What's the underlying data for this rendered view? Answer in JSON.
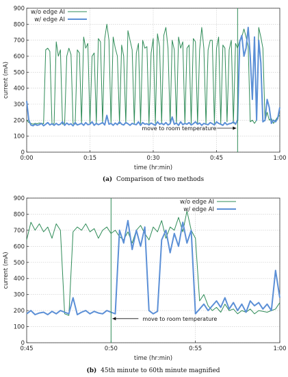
{
  "colors": {
    "without": "#2e8b57",
    "with": "#5b8fd6",
    "grid": "#c8c8c8",
    "axis": "#333333"
  },
  "chart_data": [
    {
      "id": "a",
      "type": "line",
      "caption_label": "(a)",
      "caption": "Comparison of two methods",
      "xlabel": "time (hr:min)",
      "ylabel": "current (mA)",
      "xlim": [
        0,
        60
      ],
      "ylim": [
        0,
        900
      ],
      "yticks": [
        0,
        100,
        200,
        300,
        400,
        500,
        600,
        700,
        800,
        900
      ],
      "xticks": [
        0,
        15,
        30,
        45,
        60
      ],
      "xtick_labels": [
        "0:00",
        "0:15",
        "0:30",
        "0:45",
        "1:00"
      ],
      "grid": true,
      "legend": "top-left",
      "annotation": {
        "text": "move to room temperature",
        "x": 50,
        "y": 150,
        "arrow": "right"
      },
      "vline": 50,
      "series": [
        {
          "name": "w/o edge AI",
          "x": [
            0,
            0.5,
            1,
            1.5,
            2,
            2.5,
            3,
            3.5,
            4,
            4.5,
            5,
            5.5,
            6,
            6.5,
            7,
            7.5,
            8,
            8.5,
            9,
            9.5,
            10,
            10.5,
            11,
            11.5,
            12,
            12.5,
            13,
            13.5,
            14,
            14.5,
            15,
            15.5,
            16,
            16.5,
            17,
            17.5,
            18,
            18.5,
            19,
            19.5,
            20,
            20.5,
            21,
            21.5,
            22,
            22.5,
            23,
            23.5,
            24,
            24.5,
            25,
            25.5,
            26,
            26.5,
            27,
            27.5,
            28,
            28.5,
            29,
            29.5,
            30,
            30.5,
            31,
            31.5,
            32,
            32.5,
            33,
            33.5,
            34,
            34.5,
            35,
            35.5,
            36,
            36.5,
            37,
            37.5,
            38,
            38.5,
            39,
            39.5,
            40,
            40.5,
            41,
            41.5,
            42,
            42.5,
            43,
            43.5,
            44,
            44.5,
            45,
            45.5,
            46,
            46.5,
            47,
            47.5,
            48,
            48.5,
            49,
            49.5,
            50,
            50.5,
            51,
            51.5,
            52,
            52.5,
            53,
            53.5,
            54,
            54.5,
            55,
            55.5,
            56,
            56.5,
            57,
            57.5,
            58,
            58.5,
            59,
            59.5,
            60
          ],
          "values": [
            200,
            185,
            180,
            175,
            180,
            178,
            182,
            180,
            178,
            640,
            650,
            630,
            175,
            180,
            690,
            600,
            640,
            175,
            180,
            600,
            650,
            610,
            180,
            175,
            640,
            620,
            180,
            720,
            650,
            680,
            178,
            600,
            620,
            180,
            710,
            690,
            180,
            710,
            800,
            700,
            180,
            720,
            650,
            600,
            178,
            670,
            600,
            180,
            760,
            700,
            640,
            180,
            620,
            680,
            180,
            700,
            650,
            660,
            178,
            620,
            710,
            180,
            740,
            660,
            180,
            730,
            780,
            650,
            180,
            700,
            640,
            180,
            720,
            650,
            690,
            180,
            650,
            670,
            180,
            710,
            690,
            180,
            640,
            780,
            650,
            180,
            640,
            700,
            700,
            180,
            650,
            720,
            180,
            670,
            650,
            190,
            640,
            700,
            180,
            680,
            650,
            700,
            720,
            770,
            720,
            660,
            190,
            200,
            180,
            200,
            780,
            720,
            650,
            195,
            250,
            200,
            210,
            180,
            200,
            220,
            230
          ]
        },
        {
          "name": "w/ edge AI",
          "x": [
            0,
            0.5,
            1,
            1.5,
            2,
            2.5,
            3,
            3.5,
            4,
            4.5,
            5,
            5.5,
            6,
            6.5,
            7,
            7.5,
            8,
            8.5,
            9,
            9.5,
            10,
            10.5,
            11,
            11.5,
            12,
            12.5,
            13,
            13.5,
            14,
            14.5,
            15,
            15.5,
            16,
            16.5,
            17,
            17.5,
            18,
            18.5,
            19,
            19.5,
            20,
            20.5,
            21,
            21.5,
            22,
            22.5,
            23,
            23.5,
            24,
            24.5,
            25,
            25.5,
            26,
            26.5,
            27,
            27.5,
            28,
            28.5,
            29,
            29.5,
            30,
            30.5,
            31,
            31.5,
            32,
            32.5,
            33,
            33.5,
            34,
            34.5,
            35,
            35.5,
            36,
            36.5,
            37,
            37.5,
            38,
            38.5,
            39,
            39.5,
            40,
            40.5,
            41,
            41.5,
            42,
            42.5,
            43,
            43.5,
            44,
            44.5,
            45,
            45.5,
            46,
            46.5,
            47,
            47.5,
            48,
            48.5,
            49,
            49.5,
            50,
            50.5,
            51,
            51.5,
            52,
            52.5,
            53,
            53.5,
            54,
            54.5,
            55,
            55.5,
            56,
            56.5,
            57,
            57.5,
            58,
            58.5,
            59,
            59.5,
            60
          ],
          "values": [
            320,
            200,
            170,
            165,
            175,
            168,
            172,
            180,
            165,
            175,
            185,
            170,
            178,
            168,
            180,
            170,
            175,
            190,
            168,
            182,
            172,
            178,
            165,
            185,
            170,
            175,
            180,
            168,
            185,
            172,
            175,
            190,
            168,
            180,
            172,
            178,
            185,
            170,
            230,
            175,
            180,
            168,
            182,
            172,
            190,
            175,
            170,
            185,
            178,
            168,
            180,
            175,
            172,
            190,
            168,
            185,
            175,
            178,
            170,
            182,
            175,
            168,
            190,
            175,
            180,
            172,
            185,
            170,
            178,
            220,
            175,
            182,
            168,
            190,
            172,
            180,
            175,
            185,
            170,
            178,
            190,
            175,
            182,
            168,
            180,
            175,
            172,
            185,
            178,
            170,
            190,
            180,
            175,
            168,
            185,
            172,
            178,
            180,
            190,
            175,
            200,
            690,
            730,
            600,
            650,
            780,
            600,
            330,
            720,
            200,
            700,
            560,
            190,
            200,
            330,
            280,
            180,
            200,
            190,
            210,
            280
          ]
        }
      ]
    },
    {
      "id": "b",
      "type": "line",
      "caption_label": "(b)",
      "caption": "45th minute to 60th minute magnified",
      "xlabel": "time (hr:min)",
      "ylabel": "current (mA)",
      "xlim": [
        45,
        60
      ],
      "ylim": [
        0,
        900
      ],
      "yticks": [
        0,
        100,
        200,
        300,
        400,
        500,
        600,
        700,
        800,
        900
      ],
      "xticks": [
        45,
        50,
        55,
        60
      ],
      "xtick_labels": [
        "0:45",
        "0:50",
        "0:55",
        "1:00"
      ],
      "grid": true,
      "legend": "top-right",
      "annotation": {
        "text": "move to room temperature",
        "x": 50,
        "y": 150,
        "arrow": "left"
      },
      "vline": 50,
      "series": [
        {
          "name": "w/o edge AI",
          "x": [
            45,
            45.25,
            45.5,
            45.75,
            46,
            46.25,
            46.5,
            46.75,
            47,
            47.25,
            47.5,
            47.75,
            48,
            48.25,
            48.5,
            48.75,
            49,
            49.25,
            49.5,
            49.75,
            50,
            50.25,
            50.5,
            50.75,
            51,
            51.25,
            51.5,
            51.75,
            52,
            52.25,
            52.5,
            52.75,
            53,
            53.25,
            53.5,
            53.75,
            54,
            54.25,
            54.5,
            54.75,
            55,
            55.25,
            55.5,
            55.75,
            56,
            56.25,
            56.5,
            56.75,
            57,
            57.25,
            57.5,
            57.75,
            58,
            58.25,
            58.5,
            58.75,
            59,
            59.25,
            59.5,
            59.75,
            60
          ],
          "values": [
            640,
            750,
            700,
            740,
            690,
            720,
            650,
            740,
            700,
            180,
            170,
            690,
            720,
            700,
            740,
            690,
            710,
            650,
            700,
            720,
            680,
            700,
            660,
            640,
            690,
            620,
            700,
            730,
            680,
            640,
            720,
            690,
            760,
            650,
            720,
            700,
            780,
            690,
            820,
            700,
            650,
            260,
            300,
            230,
            200,
            220,
            190,
            240,
            200,
            210,
            180,
            200,
            190,
            210,
            180,
            200,
            195,
            190,
            200,
            210,
            250
          ]
        },
        {
          "name": "w/ edge AI",
          "x": [
            45,
            45.25,
            45.5,
            45.75,
            46,
            46.25,
            46.5,
            46.75,
            47,
            47.25,
            47.5,
            47.75,
            48,
            48.25,
            48.5,
            48.75,
            49,
            49.25,
            49.5,
            49.75,
            50,
            50.25,
            50.5,
            50.75,
            51,
            51.25,
            51.5,
            51.75,
            52,
            52.25,
            52.5,
            52.75,
            53,
            53.25,
            53.5,
            53.75,
            54,
            54.25,
            54.5,
            54.75,
            55,
            55.25,
            55.5,
            55.75,
            56,
            56.25,
            56.5,
            56.75,
            57,
            57.25,
            57.5,
            57.75,
            58,
            58.25,
            58.5,
            58.75,
            59,
            59.25,
            59.5,
            59.75,
            60
          ],
          "values": [
            180,
            200,
            175,
            185,
            190,
            175,
            195,
            180,
            200,
            190,
            180,
            280,
            175,
            190,
            200,
            180,
            195,
            185,
            180,
            200,
            190,
            180,
            700,
            620,
            760,
            580,
            700,
            600,
            720,
            200,
            180,
            195,
            640,
            700,
            560,
            680,
            600,
            750,
            620,
            700,
            180,
            210,
            240,
            200,
            230,
            260,
            220,
            280,
            210,
            250,
            200,
            240,
            190,
            260,
            230,
            250,
            210,
            240,
            200,
            450,
            280
          ]
        }
      ]
    }
  ]
}
